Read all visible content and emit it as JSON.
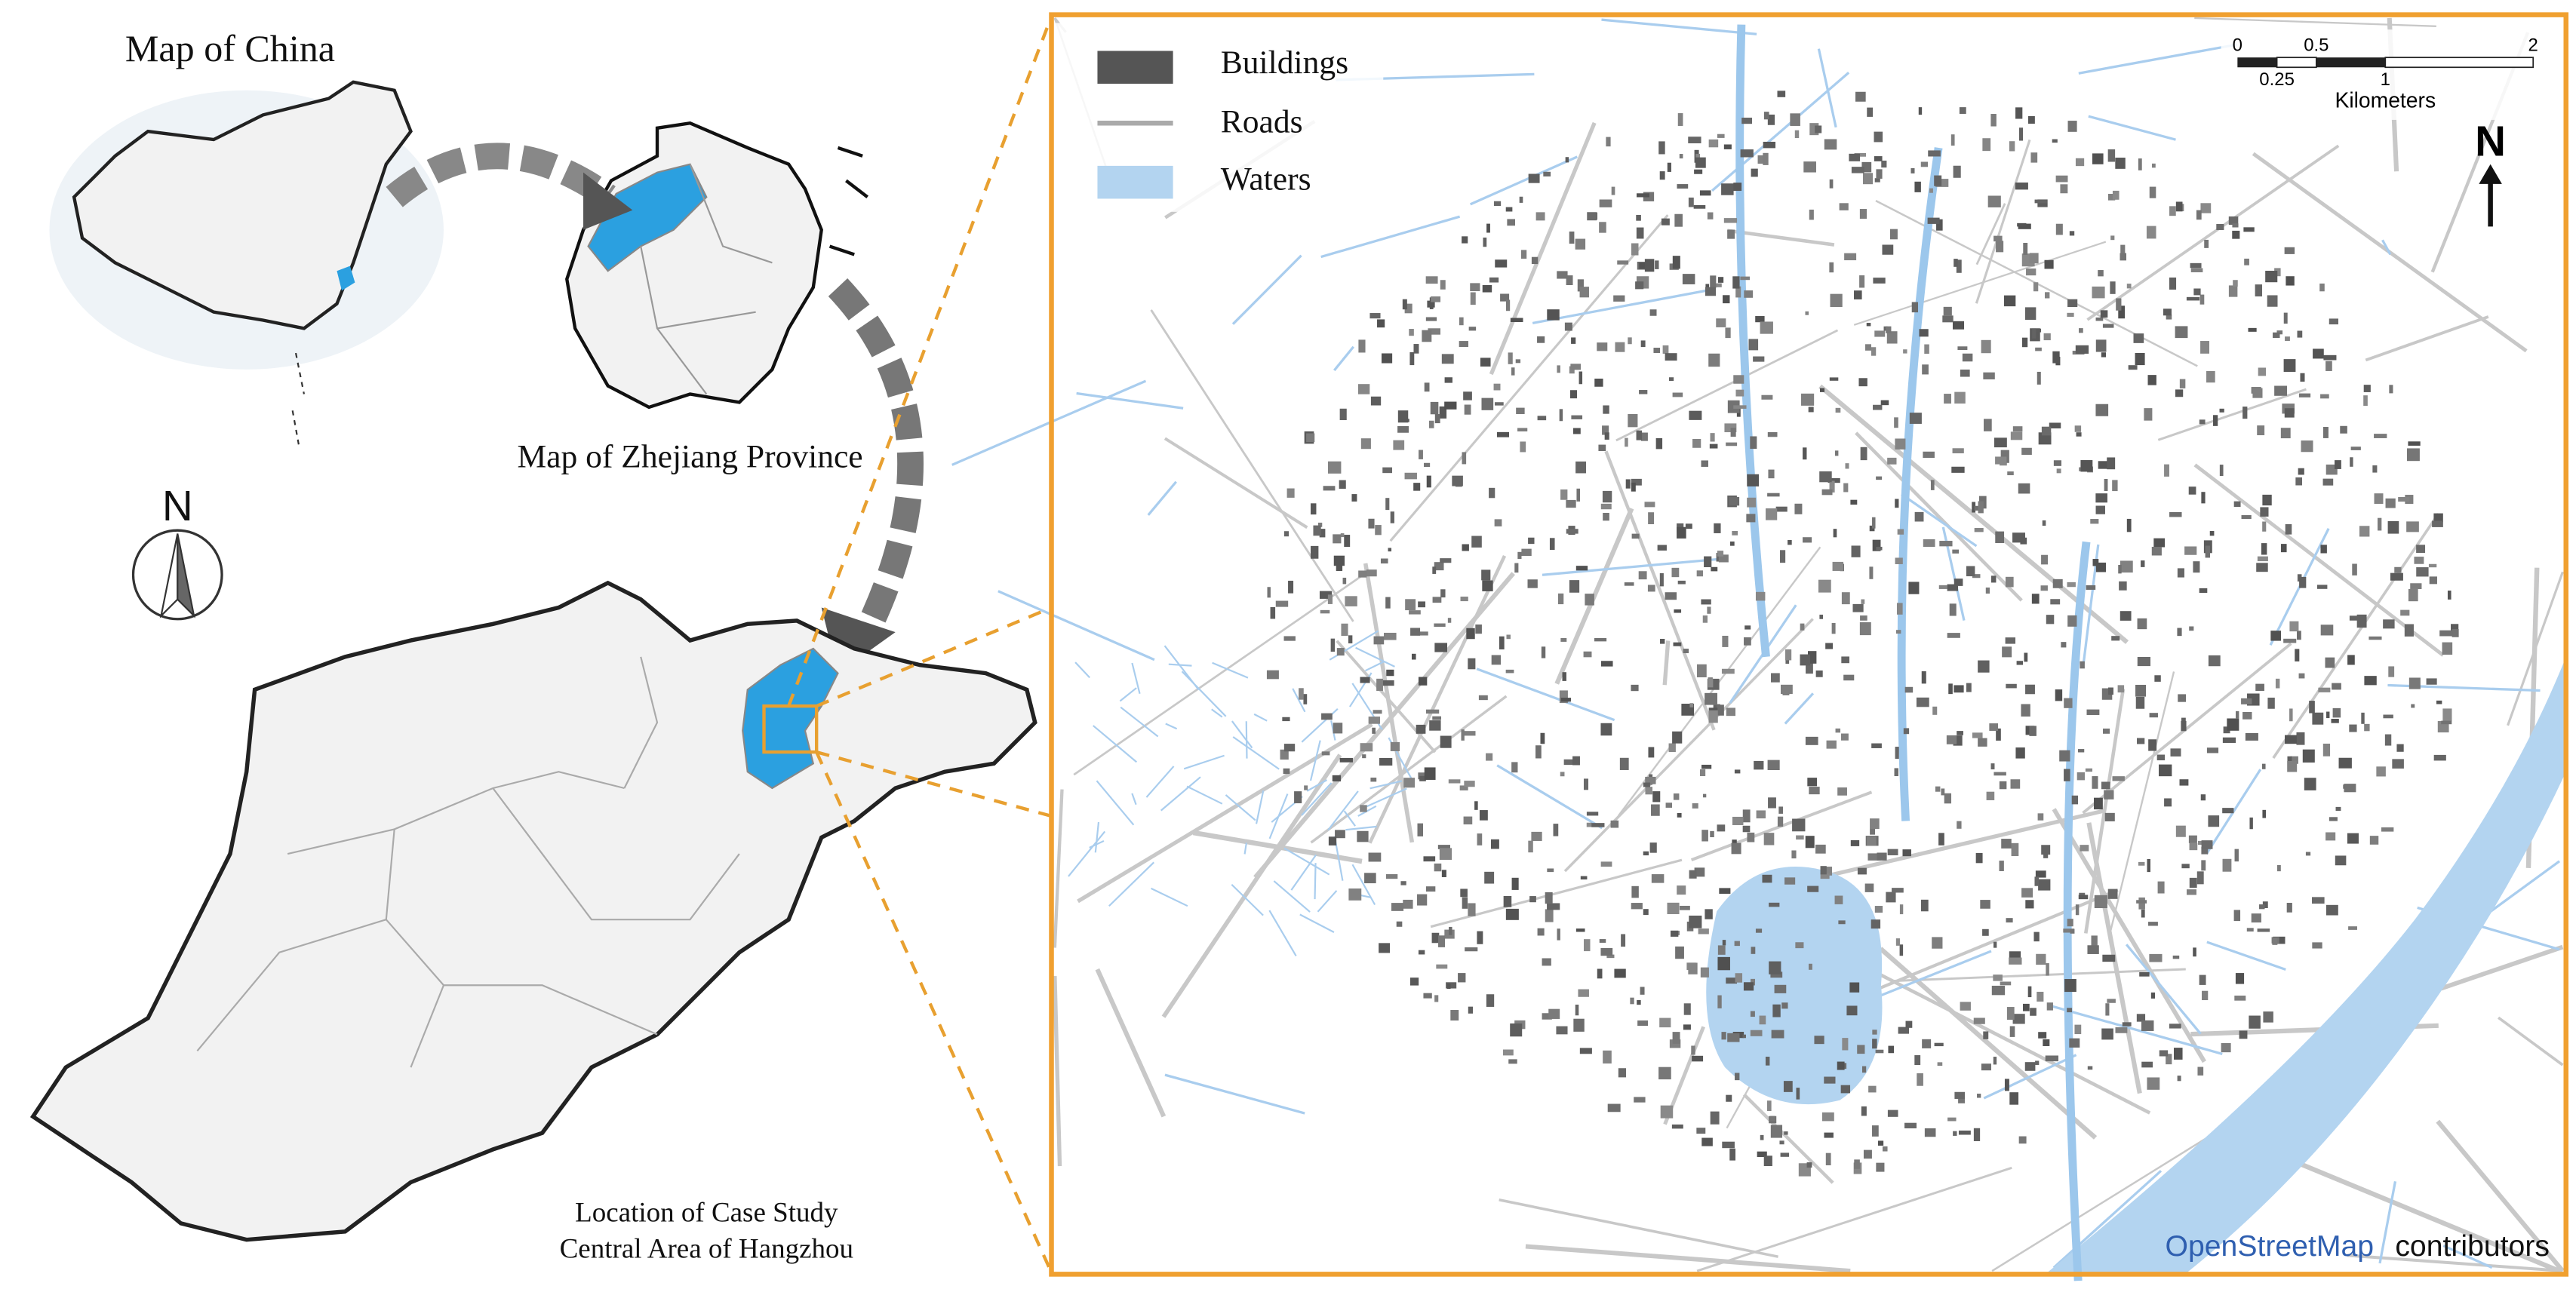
{
  "left_panel": {
    "china_title": "Map of China",
    "zhejiang_title": "Map of Zhejiang Province",
    "compass": "N",
    "caption": [
      "Location of Case Study",
      "Central Area of Hangzhou"
    ]
  },
  "right_panel": {
    "legend": [
      "Buildings",
      "Roads",
      "Waters"
    ],
    "scale_bar": {
      "top_labels": [
        "0",
        "0.5",
        "2"
      ],
      "bottom_labels": [
        "0.25",
        "1"
      ],
      "unit": "Kilometers"
    },
    "north": "N",
    "attribution": {
      "link": "OpenStreetMap",
      "text": "contributors"
    }
  }
}
